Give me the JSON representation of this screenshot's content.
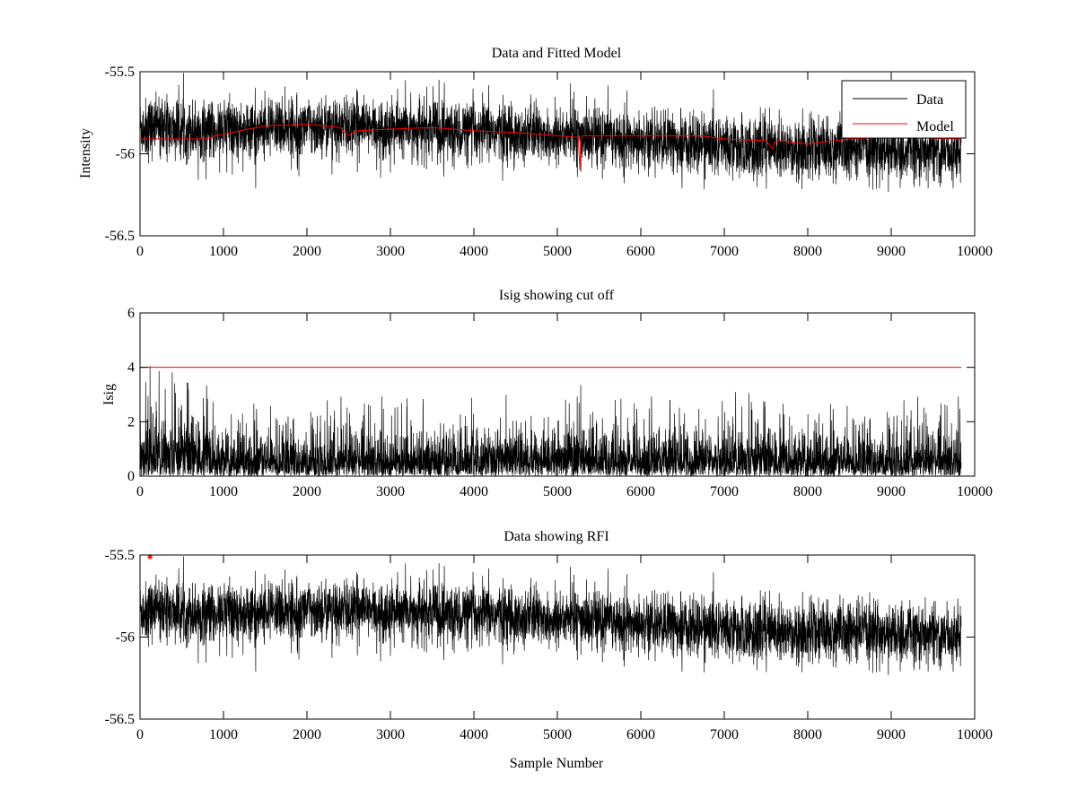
{
  "chart_data": [
    {
      "type": "line",
      "title": "Data and Fitted Model",
      "xlabel": "",
      "ylabel": "Intensity",
      "xlim": [
        0,
        10000
      ],
      "ylim": [
        -56.5,
        -55.5
      ],
      "xticks": [
        "0",
        "1000",
        "2000",
        "3000",
        "4000",
        "5000",
        "6000",
        "7000",
        "8000",
        "9000",
        "10000"
      ],
      "yticks": [
        "-55.5",
        "-56",
        "-56.5"
      ],
      "legend": [
        "Data",
        "Model"
      ],
      "legend_position": "top-right",
      "series": [
        {
          "name": "Data",
          "color": "#000000",
          "noise_amplitude": 0.18,
          "n_samples": 9840,
          "trend_x": [
            0,
            1000,
            2000,
            3000,
            4000,
            5000,
            6000,
            7000,
            8000,
            9000,
            9840
          ],
          "trend_y": [
            -55.84,
            -55.86,
            -55.83,
            -55.85,
            -55.86,
            -55.88,
            -55.92,
            -55.95,
            -55.97,
            -55.98,
            -55.98
          ]
        },
        {
          "name": "Model",
          "color": "#ff0000",
          "x": [
            0,
            800,
            900,
            1500,
            2000,
            2400,
            2450,
            2500,
            2550,
            2600,
            3000,
            3500,
            4000,
            4500,
            5000,
            5250,
            5270,
            5280,
            5300,
            5400,
            6000,
            6700,
            7000,
            7500,
            7580,
            7600,
            7650,
            8000,
            8500,
            9000,
            9840
          ],
          "y": [
            -55.91,
            -55.91,
            -55.89,
            -55.83,
            -55.82,
            -55.84,
            -55.87,
            -55.89,
            -55.87,
            -55.86,
            -55.85,
            -55.84,
            -55.86,
            -55.87,
            -55.89,
            -55.9,
            -56.1,
            -55.92,
            -55.89,
            -55.89,
            -55.89,
            -55.89,
            -55.91,
            -55.92,
            -55.97,
            -55.93,
            -55.92,
            -55.94,
            -55.91,
            -55.9,
            -55.91
          ]
        }
      ]
    },
    {
      "type": "line",
      "title": "Isig showing cut off",
      "xlabel": "",
      "ylabel": "Isig",
      "xlim": [
        0,
        10000
      ],
      "ylim": [
        0,
        6
      ],
      "xticks": [
        "0",
        "1000",
        "2000",
        "3000",
        "4000",
        "5000",
        "6000",
        "7000",
        "8000",
        "9000",
        "10000"
      ],
      "yticks": [
        "6",
        "4",
        "2",
        "0"
      ],
      "series": [
        {
          "name": "Isig",
          "color": "#000000",
          "n_samples": 9840,
          "noise_amplitude": 1.6,
          "spikes": [
            [
              120,
              4.05
            ],
            [
              5280,
              3.35
            ]
          ]
        },
        {
          "name": "Cut off",
          "color": "#ff0000",
          "x": [
            0,
            9840
          ],
          "y": [
            4,
            4
          ]
        }
      ]
    },
    {
      "type": "line",
      "title": "Data showing RFI",
      "xlabel": "Sample Number",
      "ylabel": "",
      "xlim": [
        0,
        10000
      ],
      "ylim": [
        -56.5,
        -55.5
      ],
      "xticks": [
        "0",
        "1000",
        "2000",
        "3000",
        "4000",
        "5000",
        "6000",
        "7000",
        "8000",
        "9000",
        "10000"
      ],
      "yticks": [
        "-55.5",
        "-56",
        "-56.5"
      ],
      "series": [
        {
          "name": "Data",
          "color": "#000000",
          "noise_amplitude": 0.18,
          "n_samples": 9840,
          "trend_x": [
            0,
            1000,
            2000,
            3000,
            4000,
            5000,
            6000,
            7000,
            8000,
            9000,
            9840
          ],
          "trend_y": [
            -55.84,
            -55.86,
            -55.83,
            -55.85,
            -55.86,
            -55.88,
            -55.92,
            -55.95,
            -55.97,
            -55.98,
            -55.98
          ]
        },
        {
          "name": "RFI",
          "color": "#ff0000",
          "marker": "*",
          "x": [
            120
          ],
          "y": [
            -55.5
          ]
        }
      ]
    }
  ]
}
